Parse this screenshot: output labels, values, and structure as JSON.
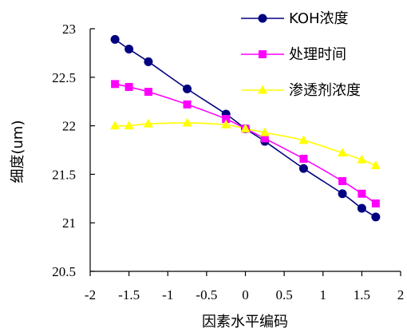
{
  "chart_data": {
    "type": "line",
    "xlabel": "因素水平编码",
    "ylabel": "细度(um)",
    "xlim": [
      -2,
      2
    ],
    "ylim": [
      20.5,
      23
    ],
    "x_ticks": [
      "-2",
      "-1.5",
      "-1",
      "-0.5",
      "0",
      "0.5",
      "1",
      "1.5",
      "2"
    ],
    "y_ticks": [
      "20.5",
      "21",
      "21.5",
      "22",
      "22.5",
      "23"
    ],
    "grid": false,
    "legend_position": "top-right",
    "series": [
      {
        "name": "KOH浓度",
        "color": "#000080",
        "marker": "circle",
        "x": [
          -1.68,
          -1.5,
          -1.25,
          -0.75,
          -0.25,
          0,
          0.25,
          0.75,
          1.25,
          1.5,
          1.68
        ],
        "y": [
          22.89,
          22.79,
          22.66,
          22.38,
          22.12,
          21.97,
          21.84,
          21.56,
          21.3,
          21.15,
          21.06
        ]
      },
      {
        "name": "处理时间",
        "color": "#FF00FF",
        "marker": "square",
        "x": [
          -1.68,
          -1.5,
          -1.25,
          -0.75,
          -0.25,
          0,
          0.25,
          0.75,
          1.25,
          1.5,
          1.68
        ],
        "y": [
          22.43,
          22.4,
          22.35,
          22.22,
          22.07,
          21.97,
          21.87,
          21.66,
          21.43,
          21.3,
          21.2
        ]
      },
      {
        "name": "渗透剂浓度",
        "color": "#FFFF00",
        "marker": "triangle",
        "x": [
          -1.68,
          -1.5,
          -1.25,
          -0.75,
          -0.25,
          0,
          0.25,
          0.75,
          1.25,
          1.5,
          1.68
        ],
        "y": [
          22.0,
          22.0,
          22.02,
          22.03,
          22.01,
          21.97,
          21.93,
          21.85,
          21.72,
          21.65,
          21.59
        ]
      }
    ]
  }
}
